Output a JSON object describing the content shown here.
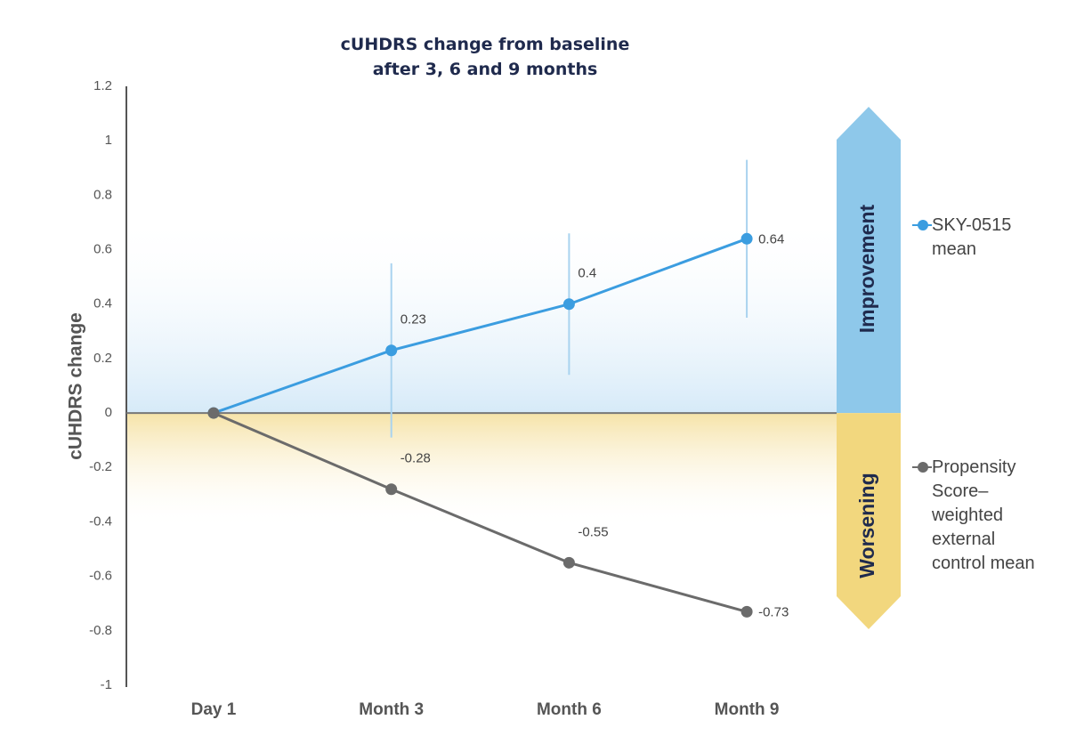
{
  "chart_data": {
    "type": "line",
    "title": "cUHDRS change from baseline after 3, 6 and 9 months",
    "y_label": "cUHDRS change",
    "categories": [
      "Day 1",
      "Month 3",
      "Month 6",
      "Month 9"
    ],
    "series": [
      {
        "name": "SKY-0515 mean",
        "color": "#3b9de0",
        "values": [
          0,
          0.23,
          0.4,
          0.64
        ],
        "value_labels": [
          null,
          "0.23",
          "0.4",
          "0.64"
        ],
        "errors": [
          null,
          0.32,
          0.26,
          0.29
        ],
        "error_color": "#a9d3ef"
      },
      {
        "name": "Propensity Score–weighted external control mean",
        "color": "#6b6b6b",
        "values": [
          0,
          -0.28,
          -0.55,
          -0.73
        ],
        "value_labels": [
          null,
          "-0.28",
          "-0.55",
          "-0.73"
        ]
      }
    ],
    "bands": [
      {
        "label": "Improvement",
        "color": "#8ec8ea"
      },
      {
        "label": "Worsening",
        "color": "#f2d77e"
      }
    ],
    "ylim": [
      -1,
      1.2
    ],
    "yticks": [
      1.2,
      1,
      0.8,
      0.6,
      0.4,
      0.2,
      0,
      -0.2,
      -0.4,
      -0.6,
      -0.8,
      -1
    ]
  }
}
